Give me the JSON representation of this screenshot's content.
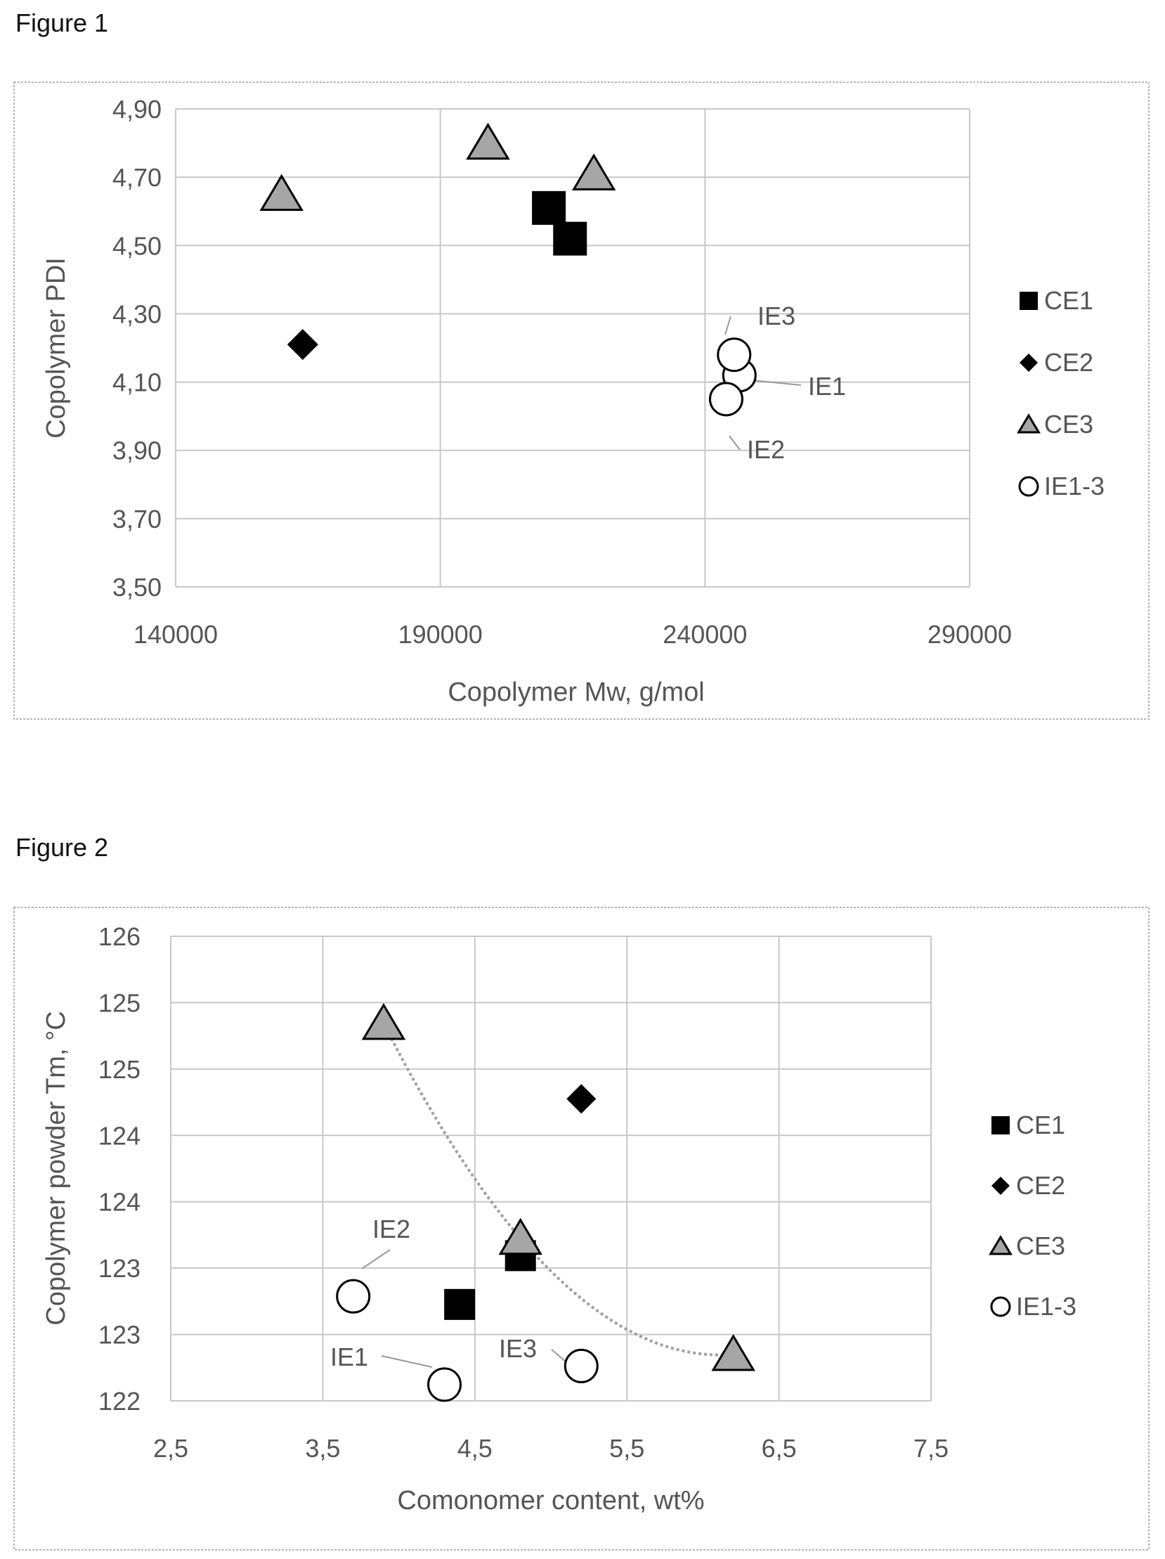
{
  "figures": [
    {
      "title": "Figure 1"
    },
    {
      "title": "Figure 2"
    }
  ],
  "colors": {
    "ce1": "#000000",
    "ce2": "#000000",
    "ce3": "#a6a6a6",
    "ie": "#ffffff",
    "grid": "#c8c8c8",
    "text": "#555555",
    "trendline": "#a0a0a0"
  },
  "chart_data": [
    {
      "type": "scatter",
      "title": "",
      "xlabel": "Copolymer Mw, g/mol",
      "ylabel": "Copolymer PDI",
      "xlim": [
        140000,
        290000
      ],
      "ylim": [
        3.5,
        4.9
      ],
      "x_ticks": [
        "140000",
        "190000",
        "240000",
        "290000"
      ],
      "y_ticks": [
        "4,90",
        "4,70",
        "4,50",
        "4,30",
        "4,10",
        "3,90",
        "3,70",
        "3,50"
      ],
      "legend_position": "right",
      "series": [
        {
          "name": "CE1",
          "marker": "square",
          "points": [
            [
              210500,
              4.61
            ],
            [
              214500,
              4.52
            ]
          ]
        },
        {
          "name": "CE2",
          "marker": "diamond",
          "points": [
            [
              164000,
              4.21
            ]
          ]
        },
        {
          "name": "CE3",
          "marker": "triangle",
          "points": [
            [
              160000,
              4.65
            ],
            [
              199000,
              4.8
            ],
            [
              219000,
              4.71
            ]
          ]
        },
        {
          "name": "IE1-3",
          "marker": "circle",
          "points": [
            [
              246500,
              4.12
            ],
            [
              244000,
              4.05
            ],
            [
              245500,
              4.18
            ]
          ]
        }
      ],
      "annotations": [
        {
          "text": "IE3",
          "x": 245500,
          "y": 4.18
        },
        {
          "text": "IE1",
          "x": 246500,
          "y": 4.12
        },
        {
          "text": "IE2",
          "x": 244000,
          "y": 4.05
        }
      ]
    },
    {
      "type": "scatter",
      "title": "",
      "xlabel": "Comonomer content, wt%",
      "ylabel": "Copolymer powder Tm, °C",
      "xlim": [
        2.5,
        7.5
      ],
      "ylim": [
        122,
        126
      ],
      "x_ticks": [
        "2,5",
        "3,5",
        "4,5",
        "5,5",
        "6,5",
        "7,5"
      ],
      "y_ticks": [
        "126",
        "125",
        "125",
        "124",
        "124",
        "123",
        "123",
        "122"
      ],
      "legend_position": "right",
      "series": [
        {
          "name": "CE1",
          "marker": "square",
          "points": [
            [
              4.4,
              122.83
            ],
            [
              4.8,
              123.25
            ]
          ]
        },
        {
          "name": "CE2",
          "marker": "diamond",
          "points": [
            [
              5.2,
              124.6
            ]
          ]
        },
        {
          "name": "CE3",
          "marker": "triangle",
          "points": [
            [
              3.9,
              125.25
            ],
            [
              4.8,
              123.4
            ],
            [
              6.2,
              122.4
            ]
          ]
        },
        {
          "name": "IE1-3",
          "marker": "circle",
          "points": [
            [
              4.3,
              122.14
            ],
            [
              3.7,
              122.9
            ],
            [
              5.2,
              122.3
            ]
          ]
        }
      ],
      "trendline": {
        "type": "polynomial",
        "x_range": [
          3.9,
          6.2
        ]
      },
      "annotations": [
        {
          "text": "IE2",
          "x": 3.7,
          "y": 122.9
        },
        {
          "text": "IE3",
          "x": 5.2,
          "y": 122.3
        },
        {
          "text": "IE1",
          "x": 4.3,
          "y": 122.14
        }
      ]
    }
  ]
}
